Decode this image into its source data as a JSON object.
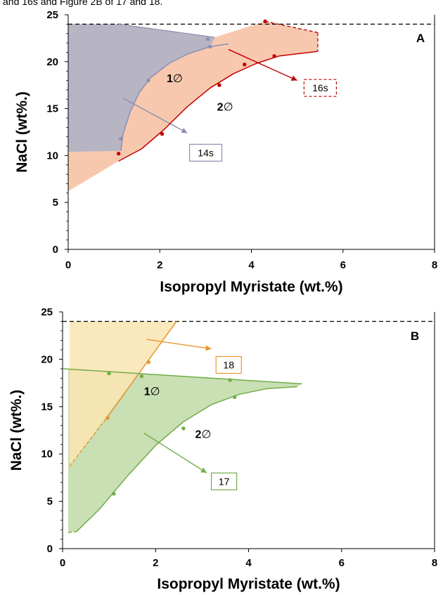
{
  "header_fragment": "and 16s and Figure 2B of 17 and 18.",
  "chart_data": [
    {
      "panel": "A",
      "type": "scatter",
      "xlabel": "Isopropyl Myristate (wt.%)",
      "ylabel": "NaCl (wt%.)",
      "xlim": [
        0,
        8
      ],
      "ylim": [
        0,
        25
      ],
      "xticks": [
        "0",
        "2",
        "4",
        "6",
        "8"
      ],
      "yticks": [
        "0",
        "5",
        "10",
        "15",
        "20",
        "25"
      ],
      "saturation_y": 24,
      "region_labels": [
        {
          "bold": "1",
          "symbol": "∅",
          "x": 2.15,
          "y": 17.8
        },
        {
          "bold": "2",
          "symbol": "∅",
          "x": 3.25,
          "y": 14.8
        }
      ],
      "series": [
        {
          "name": "14s",
          "color": "#8c8fb3",
          "fill_color": "#b7b5c4",
          "points": [
            [
              1.15,
              11.8
            ],
            [
              1.75,
              18.0
            ],
            [
              3.05,
              22.4
            ],
            [
              3.1,
              21.6
            ]
          ],
          "curve": [
            [
              1.15,
              10.5
            ],
            [
              1.2,
              12.3
            ],
            [
              1.35,
              14.6
            ],
            [
              1.55,
              16.7
            ],
            [
              1.8,
              18.3
            ],
            [
              2.2,
              19.8
            ],
            [
              2.6,
              20.8
            ],
            [
              3.1,
              21.6
            ],
            [
              3.5,
              21.9
            ]
          ],
          "top_edge": [
            [
              1.1,
              24
            ],
            [
              3.2,
              22.6
            ]
          ],
          "region": [
            [
              0,
              24
            ],
            [
              1.1,
              24
            ],
            [
              3.2,
              22.6
            ],
            [
              3.1,
              21.6
            ],
            [
              2.6,
              20.8
            ],
            [
              2.2,
              19.8
            ],
            [
              1.8,
              18.3
            ],
            [
              1.55,
              16.7
            ],
            [
              1.35,
              14.6
            ],
            [
              1.2,
              12.3
            ],
            [
              1.15,
              10.5
            ],
            [
              0,
              10.4
            ]
          ],
          "callout_from": [
            1.2,
            16.1
          ],
          "callout_to": [
            2.6,
            12.4
          ],
          "callout_box": [
            2.65,
            10.3
          ]
        },
        {
          "name": "16s",
          "color": "#c00000",
          "fill_color": "#f8c8ae",
          "points": [
            [
              1.1,
              10.2
            ],
            [
              2.05,
              12.3
            ],
            [
              3.3,
              17.5
            ],
            [
              3.85,
              19.7
            ],
            [
              4.3,
              24.3
            ],
            [
              4.5,
              20.6
            ]
          ],
          "curve": [
            [
              1.1,
              9.4
            ],
            [
              1.6,
              10.7
            ],
            [
              2.1,
              12.8
            ],
            [
              2.6,
              15.2
            ],
            [
              3.1,
              17.2
            ],
            [
              3.6,
              18.7
            ],
            [
              4.1,
              19.8
            ],
            [
              4.6,
              20.6
            ],
            [
              5.45,
              21.1
            ]
          ],
          "dashed_edges": [
            [
              [
                4.3,
                24.3
              ],
              [
                5.45,
                23.1
              ]
            ],
            [
              [
                5.45,
                23.1
              ],
              [
                5.45,
                21.1
              ]
            ]
          ],
          "region": [
            [
              0,
              6.2
            ],
            [
              0,
              24
            ],
            [
              1.1,
              24
            ],
            [
              3.2,
              22.6
            ],
            [
              4.3,
              24.3
            ],
            [
              5.45,
              23.1
            ],
            [
              5.45,
              21.1
            ],
            [
              4.6,
              20.6
            ],
            [
              4.1,
              19.8
            ],
            [
              3.6,
              18.7
            ],
            [
              3.1,
              17.2
            ],
            [
              2.6,
              15.2
            ],
            [
              2.1,
              12.8
            ],
            [
              1.6,
              10.7
            ],
            [
              1.1,
              9.4
            ]
          ],
          "callout_from": [
            3.5,
            21.3
          ],
          "callout_to": [
            5.0,
            18.0
          ],
          "callout_box": [
            5.15,
            17.2
          ],
          "box_style": "dashed"
        }
      ]
    },
    {
      "panel": "B",
      "type": "scatter",
      "xlabel": "Isopropyl Myristate (wt.%)",
      "ylabel": "NaCl (wt%.)",
      "xlim": [
        0,
        8
      ],
      "ylim": [
        0,
        25
      ],
      "xticks": [
        "0",
        "2",
        "4",
        "6",
        "8"
      ],
      "yticks": [
        "0",
        "5",
        "10",
        "15",
        "20",
        "25"
      ],
      "saturation_y": 24,
      "region_labels": [
        {
          "bold": "1",
          "symbol": "∅",
          "x": 1.75,
          "y": 16.2
        },
        {
          "bold": "2",
          "symbol": "∅",
          "x": 2.85,
          "y": 11.7
        }
      ],
      "series": [
        {
          "name": "18",
          "color": "#e8962e",
          "fill_color": "#fbe6b3",
          "points": [
            [
              0.97,
              13.8
            ],
            [
              1.85,
              19.7
            ]
          ],
          "solid_line": [
            [
              0.95,
              13.8
            ],
            [
              2.45,
              24
            ]
          ],
          "dashed_line": [
            [
              0.15,
              8.7
            ],
            [
              0.95,
              13.8
            ]
          ],
          "region": [
            [
              0.15,
              8.7
            ],
            [
              0.15,
              24
            ],
            [
              2.45,
              24
            ]
          ],
          "callout_from": [
            1.8,
            22.1
          ],
          "callout_to": [
            3.2,
            21.1
          ],
          "callout_box": [
            3.3,
            19.4
          ]
        },
        {
          "name": "17",
          "color": "#70ad47",
          "fill_color": "#c9dfb4",
          "points": [
            [
              1.0,
              18.5
            ],
            [
              1.7,
              18.2
            ],
            [
              3.6,
              17.8
            ],
            [
              3.7,
              16.0
            ],
            [
              2.6,
              12.7
            ],
            [
              1.1,
              5.8
            ]
          ],
          "top_line": [
            [
              0,
              19.0
            ],
            [
              5.15,
              17.4
            ]
          ],
          "curve": [
            [
              0.3,
              1.8
            ],
            [
              0.8,
              4.2
            ],
            [
              1.4,
              7.7
            ],
            [
              2.0,
              10.9
            ],
            [
              2.6,
              13.4
            ],
            [
              3.2,
              15.2
            ],
            [
              3.8,
              16.3
            ],
            [
              4.4,
              16.9
            ],
            [
              5.05,
              17.1
            ]
          ],
          "dashed_start": [
            [
              0.12,
              1.7
            ],
            [
              0.3,
              1.8
            ]
          ],
          "region": [
            [
              0.12,
              1.7
            ],
            [
              0.12,
              19.0
            ],
            [
              5.15,
              17.4
            ],
            [
              5.05,
              17.1
            ],
            [
              4.4,
              16.9
            ],
            [
              3.8,
              16.3
            ],
            [
              3.2,
              15.2
            ],
            [
              2.6,
              13.4
            ],
            [
              2.0,
              10.9
            ],
            [
              1.4,
              7.7
            ],
            [
              0.8,
              4.2
            ],
            [
              0.3,
              1.8
            ]
          ],
          "callout_from": [
            1.75,
            12.2
          ],
          "callout_to": [
            3.1,
            8.0
          ],
          "callout_box": [
            3.2,
            7.1
          ]
        }
      ]
    }
  ]
}
